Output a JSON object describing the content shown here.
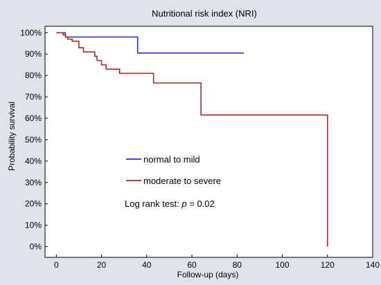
{
  "chart_data": {
    "type": "line",
    "title": "Nutritional risk index (NRI)",
    "xlabel": "Follow-up (days)",
    "ylabel": "Probability survival",
    "xlim": [
      -5,
      140
    ],
    "ylim": [
      -5,
      103
    ],
    "x_ticks": [
      0,
      20,
      40,
      60,
      80,
      100,
      120,
      140
    ],
    "y_ticks": [
      0,
      10,
      20,
      30,
      40,
      50,
      60,
      70,
      80,
      90,
      100
    ],
    "y_tick_labels": [
      "0%",
      "10%",
      "20%",
      "30%",
      "40%",
      "50%",
      "60%",
      "70%",
      "80%",
      "90%",
      "100%"
    ],
    "grid": false,
    "legend_position": "center",
    "series": [
      {
        "name": "normal to mild",
        "color": "#2a2ac8",
        "step_points": [
          [
            0,
            100
          ],
          [
            4,
            98
          ],
          [
            36,
            98
          ],
          [
            36,
            90.5
          ],
          [
            83,
            90.5
          ]
        ]
      },
      {
        "name": "moderate to severe",
        "color": "#a52a2a",
        "step_points": [
          [
            0,
            100
          ],
          [
            3,
            99
          ],
          [
            4,
            98
          ],
          [
            5,
            97
          ],
          [
            7,
            96
          ],
          [
            10,
            93
          ],
          [
            12,
            91
          ],
          [
            17,
            89
          ],
          [
            18,
            87
          ],
          [
            20,
            85
          ],
          [
            22,
            83
          ],
          [
            27,
            83
          ],
          [
            28,
            81
          ],
          [
            43,
            81
          ],
          [
            43,
            76.5
          ],
          [
            64,
            76.5
          ],
          [
            64,
            61.5
          ],
          [
            120,
            61.5
          ],
          [
            120,
            0
          ]
        ]
      }
    ],
    "annotation": {
      "prefix": "Log rank test: ",
      "p_symbol": "p",
      "suffix": " = 0.02"
    }
  }
}
